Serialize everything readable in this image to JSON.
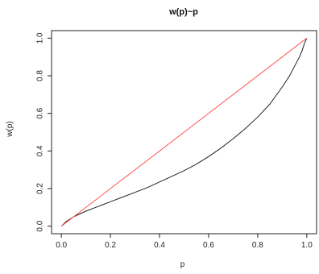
{
  "chart_data": {
    "type": "line",
    "title": "w(p)~p",
    "xlabel": "p",
    "ylabel": "w(p)",
    "xlim": [
      -0.04,
      1.04
    ],
    "ylim": [
      -0.04,
      1.04
    ],
    "x_ticks": [
      "0.0",
      "0.2",
      "0.4",
      "0.6",
      "0.8",
      "1.0"
    ],
    "y_ticks": [
      "0.0",
      "0.2",
      "0.4",
      "0.6",
      "0.8",
      "1.0"
    ],
    "grid": false,
    "series": [
      {
        "color": "#222222",
        "x": [
          0.0,
          0.02,
          0.05,
          0.1,
          0.15,
          0.2,
          0.25,
          0.3,
          0.35,
          0.4,
          0.45,
          0.5,
          0.55,
          0.6,
          0.65,
          0.7,
          0.75,
          0.8,
          0.85,
          0.9,
          0.93,
          0.95,
          0.97,
          0.98,
          0.99,
          1.0
        ],
        "y": [
          0.0,
          0.025,
          0.05,
          0.08,
          0.105,
          0.13,
          0.155,
          0.18,
          0.205,
          0.235,
          0.265,
          0.295,
          0.33,
          0.37,
          0.415,
          0.465,
          0.52,
          0.58,
          0.65,
          0.74,
          0.8,
          0.85,
          0.9,
          0.93,
          0.97,
          1.0
        ]
      },
      {
        "color": "#ff5555",
        "x": [
          0.0,
          1.0
        ],
        "y": [
          0.0,
          1.0
        ]
      }
    ]
  }
}
